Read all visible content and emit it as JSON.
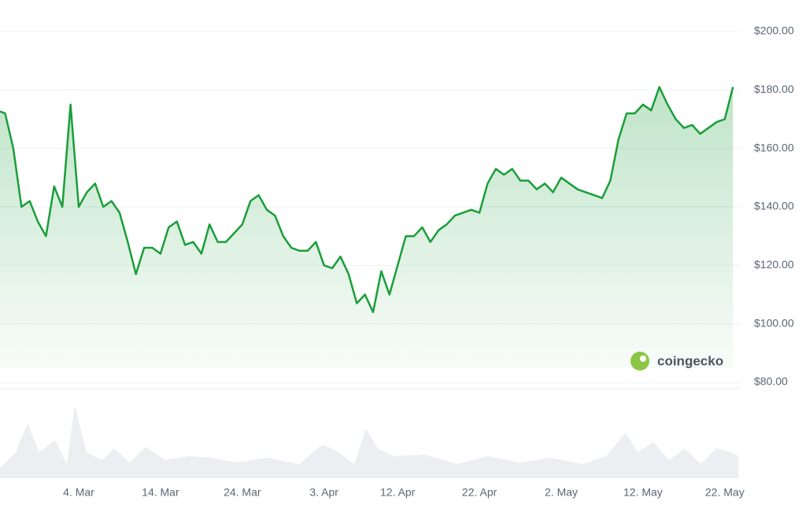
{
  "chart_data": {
    "type": "line",
    "brand": "coingecko",
    "categories": [
      null,
      null,
      null,
      null,
      null,
      null,
      null,
      null,
      null,
      null,
      "4. Mar",
      null,
      null,
      null,
      null,
      null,
      null,
      null,
      null,
      null,
      "14. Mar",
      null,
      null,
      null,
      null,
      null,
      null,
      null,
      null,
      null,
      "24. Mar",
      null,
      null,
      null,
      null,
      null,
      null,
      null,
      null,
      null,
      "3. Apr",
      null,
      null,
      null,
      null,
      null,
      null,
      null,
      null,
      "12. Apr",
      null,
      null,
      null,
      null,
      null,
      null,
      null,
      null,
      null,
      "22. Apr",
      null,
      null,
      null,
      null,
      null,
      null,
      null,
      null,
      null,
      "2. May",
      null,
      null,
      null,
      null,
      null,
      null,
      null,
      null,
      null,
      "12. May",
      null,
      null,
      null,
      null,
      null,
      null,
      null,
      null,
      null,
      "22. May",
      null
    ],
    "series": [
      {
        "color": "#1a9e3a",
        "values": [
          173,
          172,
          160,
          140,
          142,
          135,
          130,
          147,
          140,
          175,
          140,
          145,
          148,
          140,
          142,
          138,
          128,
          117,
          126,
          126,
          124,
          133,
          135,
          127,
          128,
          124,
          134,
          128,
          128,
          131,
          134,
          142,
          144,
          139,
          137,
          130,
          126,
          125,
          125,
          128,
          120,
          119,
          123,
          117,
          107,
          110,
          104,
          118,
          110,
          120,
          130,
          130,
          133,
          128,
          132,
          134,
          137,
          138,
          139,
          138,
          148,
          153,
          151,
          153,
          149,
          149,
          146,
          148,
          145,
          150,
          148,
          146,
          145,
          144,
          143,
          149,
          163,
          172,
          172,
          175,
          173,
          181,
          175,
          170,
          167,
          168,
          165,
          167,
          169,
          170,
          181
        ]
      }
    ],
    "ylim": [
      80,
      200
    ],
    "yticks": [
      {
        "value": 80,
        "label": "$80.00"
      },
      {
        "value": 100,
        "label": "$100.00"
      },
      {
        "value": 120,
        "label": "$120.00"
      },
      {
        "value": 140,
        "label": "$140.00"
      },
      {
        "value": 160,
        "label": "$160.00"
      },
      {
        "value": 180,
        "label": "$180.00"
      },
      {
        "value": 200,
        "label": "$200.00"
      }
    ],
    "grid": true
  }
}
